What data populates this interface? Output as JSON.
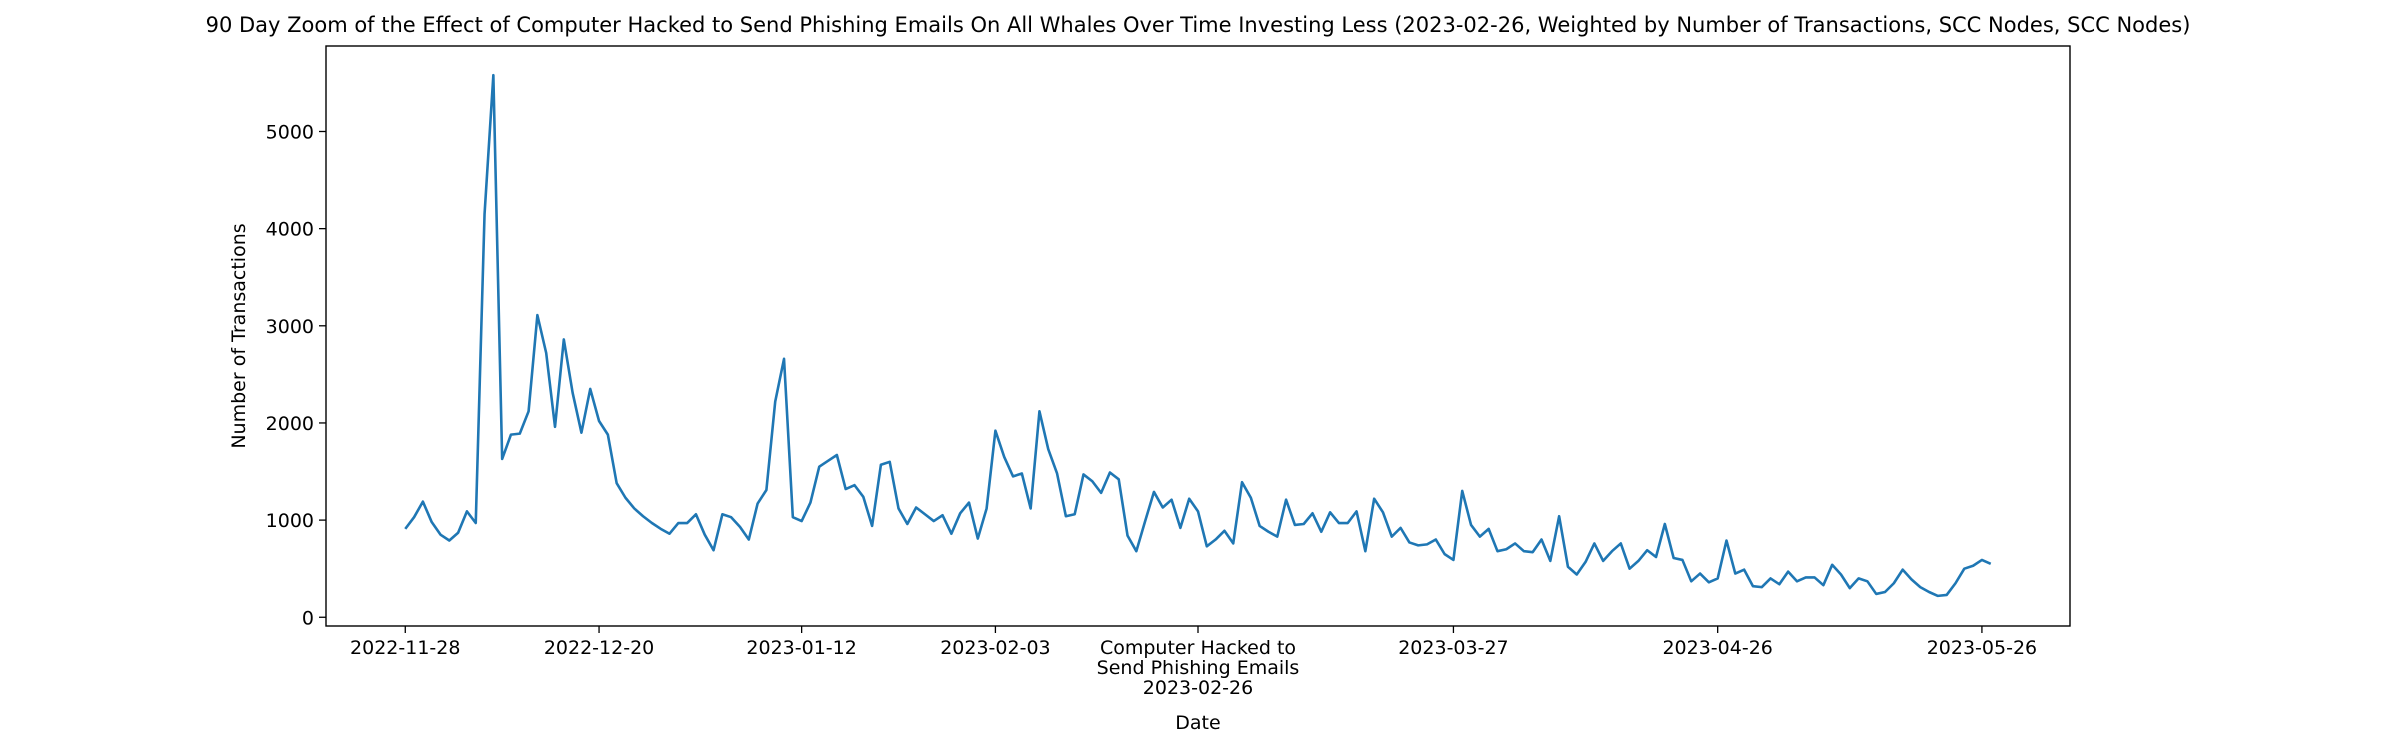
{
  "chart_data": {
    "type": "line",
    "title": "90 Day Zoom of the Effect of Computer Hacked to Send Phishing Emails On All Whales Over Time Investing Less (2023-02-26, Weighted by Number of Transactions, SCC Nodes, SCC Nodes)",
    "xlabel": "Date",
    "ylabel": "Number of Transactions",
    "ylim": [
      -90,
      5880
    ],
    "y_ticks": [
      0,
      1000,
      2000,
      3000,
      4000,
      5000
    ],
    "x_ticks": [
      {
        "date": "2022-11-28",
        "label": "2022-11-28"
      },
      {
        "date": "2022-12-20",
        "label": "2022-12-20"
      },
      {
        "date": "2023-01-12",
        "label": "2023-01-12"
      },
      {
        "date": "2023-02-03",
        "label": "2023-02-03"
      },
      {
        "date": "2023-02-26",
        "label": "Computer Hacked to\nSend Phishing Emails\n2023-02-26"
      },
      {
        "date": "2023-03-27",
        "label": "2023-03-27"
      },
      {
        "date": "2023-04-26",
        "label": "2023-04-26"
      },
      {
        "date": "2023-05-26",
        "label": "2023-05-26"
      }
    ],
    "grid": false,
    "color": "#1f77b4",
    "series": [
      {
        "start_date": "2022-11-28",
        "values": [
          910,
          1030,
          1190,
          980,
          850,
          790,
          870,
          1090,
          970,
          4150,
          5580,
          1630,
          1880,
          1890,
          2120,
          3110,
          2720,
          1960,
          2860,
          2310,
          1900,
          2350,
          2020,
          1880,
          1380,
          1230,
          1120,
          1040,
          970,
          910,
          860,
          970,
          970,
          1060,
          850,
          690,
          1060,
          1030,
          930,
          800,
          1170,
          1310,
          2220,
          2660,
          1030,
          990,
          1180,
          1550,
          1610,
          1670,
          1320,
          1360,
          1240,
          940,
          1570,
          1600,
          1120,
          960,
          1130,
          1060,
          990,
          1050,
          860,
          1070,
          1180,
          810,
          1120,
          1920,
          1650,
          1450,
          1480,
          1120,
          2120,
          1730,
          1480,
          1040,
          1060,
          1470,
          1400,
          1280,
          1490,
          1420,
          840,
          680,
          990,
          1290,
          1130,
          1210,
          920,
          1220,
          1090,
          730,
          800,
          890,
          760,
          1390,
          1230,
          940,
          880,
          830,
          1210,
          950,
          960,
          1070,
          880,
          1080,
          970,
          970,
          1090,
          680,
          1220,
          1080,
          830,
          920,
          770,
          740,
          750,
          800,
          650,
          590,
          1300,
          950,
          830,
          910,
          680,
          700,
          760,
          680,
          670,
          800,
          580,
          1040,
          520,
          440,
          570,
          760,
          580,
          680,
          760,
          500,
          580,
          690,
          620,
          960,
          610,
          590,
          370,
          450,
          360,
          400,
          790,
          450,
          490,
          320,
          310,
          400,
          340,
          470,
          370,
          410,
          410,
          330,
          540,
          440,
          300,
          400,
          370,
          240,
          260,
          350,
          490,
          390,
          310,
          260,
          220,
          230,
          350,
          500,
          530,
          590,
          550
        ]
      }
    ]
  }
}
